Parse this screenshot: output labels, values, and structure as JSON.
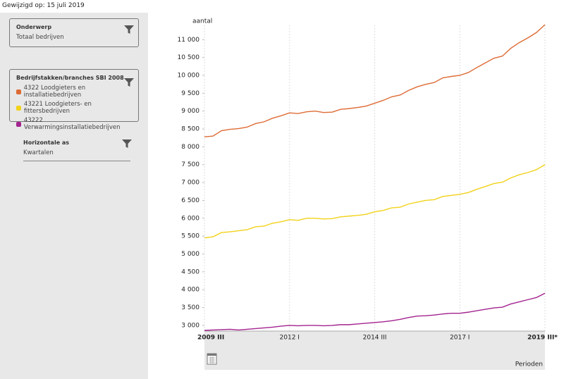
{
  "header": {
    "modified": "Gewijzigd op: 15 juli 2019"
  },
  "filters": {
    "subject": {
      "title": "Onderwerp",
      "value": "Totaal bedrijven"
    },
    "sectors": {
      "title": "Bedrijfstakken/branches SBI 2008"
    },
    "horizontal": {
      "title": "Horizontale as",
      "value": "Kwartalen"
    }
  },
  "chart_data": {
    "type": "line",
    "y_label": "aantal",
    "x_label": "Perioden",
    "categories": [
      "2009 III",
      null,
      null,
      null,
      null,
      null,
      null,
      null,
      null,
      null,
      "2012 I",
      null,
      null,
      null,
      null,
      null,
      null,
      null,
      null,
      null,
      "2014 III",
      null,
      null,
      null,
      null,
      null,
      null,
      null,
      null,
      null,
      "2017 I",
      null,
      null,
      null,
      null,
      null,
      null,
      null,
      null,
      null,
      "2019 III*"
    ],
    "series": [
      {
        "name": "4322 Loodgieters en installatiebedrijven",
        "color": "#de6b35",
        "values": [
          8280,
          8300,
          8450,
          8490,
          8510,
          8550,
          8650,
          8700,
          8800,
          8870,
          8950,
          8930,
          8980,
          9000,
          8960,
          8970,
          9050,
          9070,
          9100,
          9140,
          9220,
          9300,
          9400,
          9450,
          9580,
          9680,
          9750,
          9800,
          9930,
          9970,
          10000,
          10080,
          10220,
          10350,
          10480,
          10540,
          10760,
          10920,
          11050,
          11200,
          11420
        ]
      },
      {
        "name": "43221 Loodgieters- en fittersbedrijven",
        "color": "#f2d21a",
        "values": [
          5450,
          5480,
          5600,
          5620,
          5650,
          5680,
          5760,
          5780,
          5860,
          5900,
          5960,
          5940,
          6000,
          6000,
          5980,
          5990,
          6040,
          6060,
          6080,
          6110,
          6180,
          6220,
          6290,
          6310,
          6400,
          6450,
          6500,
          6520,
          6610,
          6640,
          6670,
          6720,
          6810,
          6890,
          6970,
          7010,
          7130,
          7220,
          7280,
          7360,
          7500
        ]
      },
      {
        "name": "43222 Verwarmingsinstallatiebedrijven",
        "color": "#a3238f",
        "values": [
          2860,
          2870,
          2880,
          2890,
          2870,
          2890,
          2910,
          2930,
          2950,
          2980,
          3000,
          2990,
          3000,
          3000,
          2990,
          3000,
          3020,
          3020,
          3040,
          3060,
          3080,
          3100,
          3130,
          3170,
          3220,
          3260,
          3270,
          3290,
          3320,
          3340,
          3340,
          3370,
          3410,
          3450,
          3490,
          3510,
          3600,
          3660,
          3720,
          3780,
          3900
        ]
      }
    ],
    "ylim": [
      2840,
      11400
    ],
    "yticks": [
      {
        "value": 3000,
        "label": "3 000"
      },
      {
        "value": 3500,
        "label": "3 500"
      },
      {
        "value": 4000,
        "label": "4 000"
      },
      {
        "value": 4500,
        "label": "4 500"
      },
      {
        "value": 5000,
        "label": "5 000"
      },
      {
        "value": 5500,
        "label": "5 500"
      },
      {
        "value": 6000,
        "label": "6 000"
      },
      {
        "value": 6500,
        "label": "6 500"
      },
      {
        "value": 7000,
        "label": "7 000"
      },
      {
        "value": 7500,
        "label": "7 500"
      },
      {
        "value": 8000,
        "label": "8 000"
      },
      {
        "value": 8500,
        "label": "8 500"
      },
      {
        "value": 9000,
        "label": "9 000"
      },
      {
        "value": 9500,
        "label": "9 500"
      },
      {
        "value": 10000,
        "label": "10 000"
      },
      {
        "value": 10500,
        "label": "10 500"
      },
      {
        "value": 11000,
        "label": "11 000"
      }
    ],
    "grid": "x"
  }
}
